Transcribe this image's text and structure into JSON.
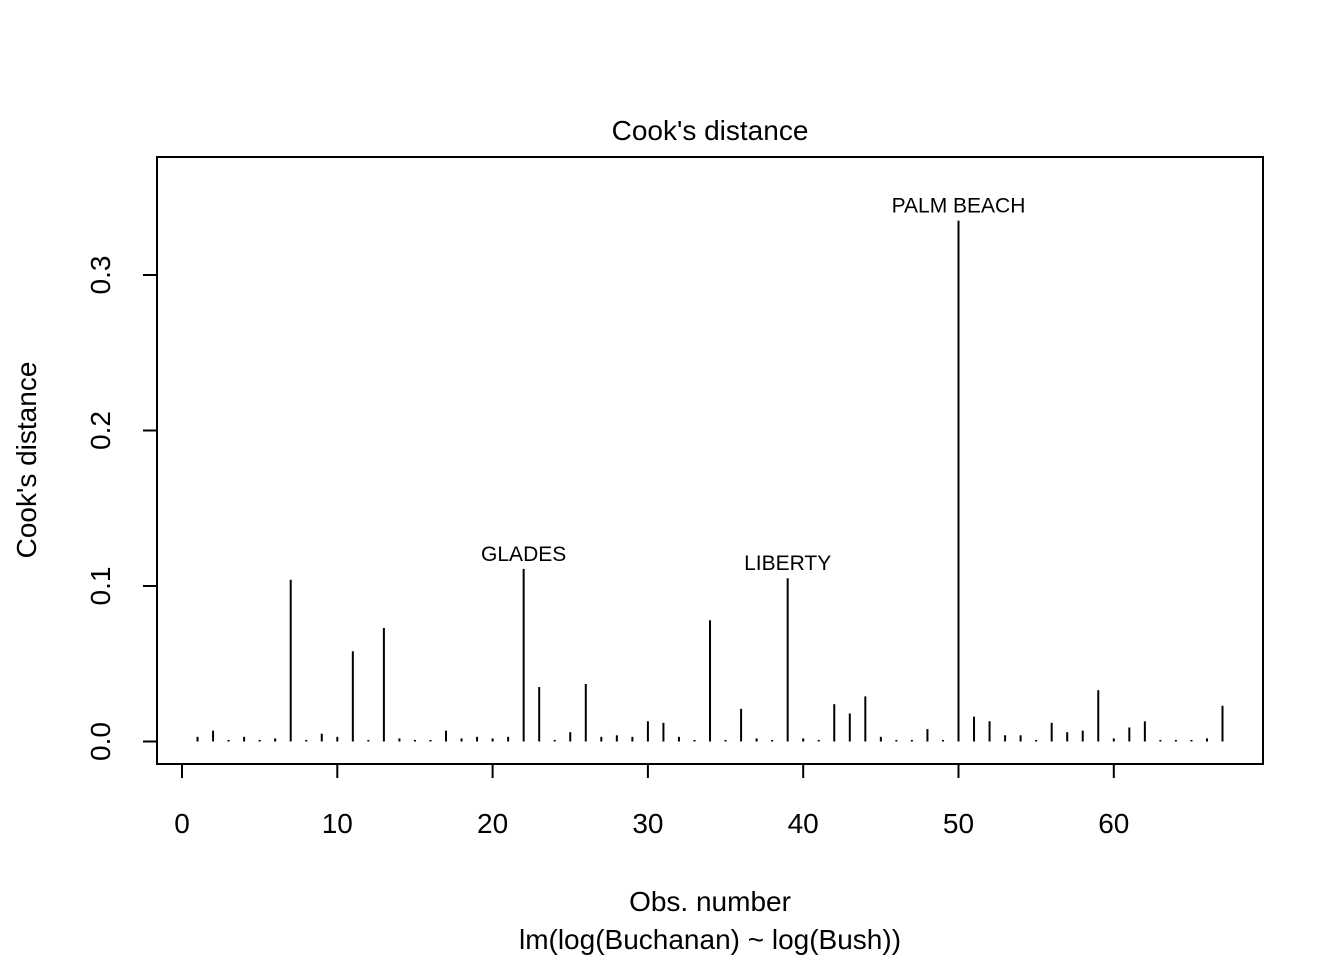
{
  "chart_data": {
    "type": "bar",
    "title": "Cook's distance",
    "xlabel": "Obs. number",
    "subtitle": "lm(log(Buchanan) ~ log(Bush))",
    "ylabel": "Cook's distance",
    "xlim": [
      0,
      67
    ],
    "ylim": [
      0,
      0.35
    ],
    "grid": false,
    "x_ticks": [
      0,
      10,
      20,
      30,
      40,
      50,
      60
    ],
    "x_tick_labels": [
      "0",
      "10",
      "20",
      "30",
      "40",
      "50",
      "60"
    ],
    "y_ticks": [
      0,
      0.1,
      0.2,
      0.3
    ],
    "y_tick_labels": [
      "0.0",
      "0.1",
      "0.2",
      "0.3"
    ],
    "x": [
      1,
      2,
      3,
      4,
      5,
      6,
      7,
      8,
      9,
      10,
      11,
      12,
      13,
      14,
      15,
      16,
      17,
      18,
      19,
      20,
      21,
      22,
      23,
      24,
      25,
      26,
      27,
      28,
      29,
      30,
      31,
      32,
      33,
      34,
      35,
      36,
      37,
      38,
      39,
      40,
      41,
      42,
      43,
      44,
      45,
      46,
      47,
      48,
      49,
      50,
      51,
      52,
      53,
      54,
      55,
      56,
      57,
      58,
      59,
      60,
      61,
      62,
      63,
      64,
      65,
      66,
      67
    ],
    "values": [
      0.003,
      0.007,
      0.001,
      0.003,
      0.001,
      0.002,
      0.104,
      0.001,
      0.005,
      0.003,
      0.058,
      0.001,
      0.073,
      0.002,
      0.001,
      0.001,
      0.007,
      0.002,
      0.003,
      0.002,
      0.003,
      0.111,
      0.035,
      0.001,
      0.006,
      0.037,
      0.003,
      0.004,
      0.003,
      0.013,
      0.012,
      0.003,
      0.001,
      0.078,
      0.001,
      0.021,
      0.002,
      0.001,
      0.105,
      0.002,
      0.001,
      0.024,
      0.018,
      0.029,
      0.003,
      0.001,
      0.001,
      0.008,
      0.001,
      0.335,
      0.016,
      0.013,
      0.004,
      0.004,
      0.001,
      0.012,
      0.006,
      0.007,
      0.033,
      0.002,
      0.009,
      0.013,
      0.001,
      0.001,
      0.001,
      0.002,
      0.023
    ],
    "annotations": [
      {
        "x": 22,
        "value": 0.111,
        "text": "GLADES"
      },
      {
        "x": 39,
        "value": 0.105,
        "text": "LIBERTY"
      },
      {
        "x": 50,
        "value": 0.335,
        "text": "PALM BEACH"
      }
    ]
  }
}
